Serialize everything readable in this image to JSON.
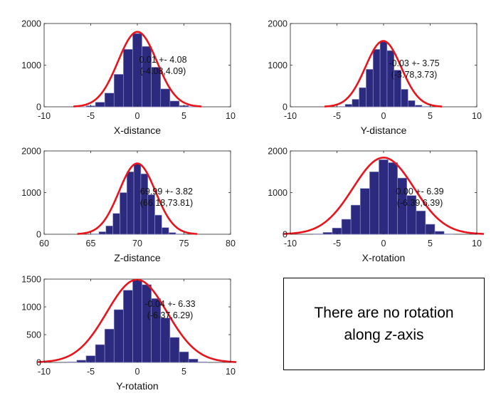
{
  "chart_data": [
    {
      "type": "bar",
      "id": "x-distance",
      "xlabel": "X-distance",
      "xlim": [
        -10,
        10
      ],
      "ylim": [
        0,
        2000
      ],
      "xticks": [
        "-10",
        "-5",
        "0",
        "5",
        "10"
      ],
      "yticks": [
        "0",
        "1000",
        "2000"
      ],
      "bin_width": 1,
      "bins": [
        -6,
        -5,
        -4,
        -3,
        -2,
        -1,
        0,
        1,
        2,
        3,
        4,
        5,
        6
      ],
      "values": [
        5,
        25,
        110,
        330,
        780,
        1380,
        1760,
        1450,
        950,
        430,
        140,
        30,
        5
      ],
      "fit": {
        "mean": 0.01,
        "sigma": 2.08,
        "peak": 1800
      },
      "annotation": [
        "0.01 +- 4.08",
        "(-4.08,4.09)"
      ]
    },
    {
      "type": "bar",
      "id": "y-distance",
      "xlabel": "Y-distance",
      "xlim": [
        -10,
        10
      ],
      "ylim": [
        0,
        2000
      ],
      "xticks": [
        "-10",
        "-5",
        "0",
        "5",
        "10"
      ],
      "yticks": [
        "0",
        "1000",
        "2000"
      ],
      "bin_width": 0.75,
      "bins": [
        -4.5,
        -3.75,
        -3,
        -2.25,
        -1.5,
        -0.75,
        0,
        0.75,
        1.5,
        2.25,
        3,
        3.75,
        4.5
      ],
      "values": [
        10,
        60,
        180,
        460,
        900,
        1380,
        1560,
        1350,
        880,
        420,
        150,
        40,
        10
      ],
      "fit": {
        "mean": -0.03,
        "sigma": 1.91,
        "peak": 1580
      },
      "annotation": [
        "-0.03 +- 3.75",
        "(-3.78,3.73)"
      ]
    },
    {
      "type": "bar",
      "id": "z-distance",
      "xlabel": "Z-distance",
      "xlim": [
        60,
        80
      ],
      "ylim": [
        0,
        2000
      ],
      "xticks": [
        "60",
        "65",
        "70",
        "75",
        "80"
      ],
      "yticks": [
        "0",
        "1000",
        "2000"
      ],
      "bin_width": 0.75,
      "bins": [
        65.5,
        66.25,
        67,
        67.75,
        68.5,
        69.25,
        70,
        70.75,
        71.5,
        72.25,
        73,
        73.75,
        74.5
      ],
      "values": [
        10,
        60,
        200,
        500,
        1000,
        1500,
        1680,
        1450,
        950,
        460,
        160,
        40,
        10
      ],
      "fit": {
        "mean": 69.99,
        "sigma": 1.95,
        "peak": 1700
      },
      "annotation": [
        "69.99 +- 3.82",
        "(66.18,73.81)"
      ]
    },
    {
      "type": "bar",
      "id": "x-rotation",
      "xlabel": "X-rotation",
      "xlim": [
        -10,
        10
      ],
      "ylim": [
        0,
        2000
      ],
      "xticks": [
        "-10",
        "-5",
        "0",
        "5",
        "10"
      ],
      "yticks": [
        "0",
        "1000",
        "2000"
      ],
      "bin_width": 1,
      "bins": [
        -7,
        -6,
        -5,
        -4,
        -3,
        -2,
        -1,
        0,
        1,
        2,
        3,
        4,
        5,
        6,
        7
      ],
      "values": [
        10,
        45,
        150,
        360,
        700,
        1100,
        1500,
        1790,
        1720,
        1350,
        930,
        560,
        240,
        70,
        10
      ],
      "fit": {
        "mean": 0.0,
        "sigma": 3.26,
        "peak": 1840
      },
      "annotation": [
        "0.00 +- 6.39",
        "(-6.39,6.39)"
      ]
    },
    {
      "type": "bar",
      "id": "y-rotation",
      "xlabel": "Y-rotation",
      "xlim": [
        -10,
        10
      ],
      "ylim": [
        0,
        1500
      ],
      "xticks": [
        "-10",
        "-5",
        "0",
        "5",
        "10"
      ],
      "yticks": [
        "0",
        "500",
        "1000",
        "1500"
      ],
      "bin_width": 1,
      "bins": [
        -7,
        -6,
        -5,
        -4,
        -3,
        -2,
        -1,
        0,
        1,
        2,
        3,
        4,
        5,
        6,
        7
      ],
      "values": [
        10,
        40,
        120,
        320,
        600,
        950,
        1300,
        1480,
        1400,
        1150,
        800,
        450,
        190,
        60,
        10
      ],
      "fit": {
        "mean": -0.04,
        "sigma": 3.23,
        "peak": 1490
      },
      "annotation": [
        "-0.04 +- 6.33",
        "(-6.37,6.29)"
      ]
    }
  ],
  "note": {
    "line1": "There are no rotation",
    "line2_pre": "along ",
    "line2_italic": "z",
    "line2_post": "-axis"
  },
  "colors": {
    "bar_fill": "#2b2a7e",
    "bar_edge": "#9a9ad0",
    "fit_curve": "#e8141c",
    "axis": "#262626"
  }
}
